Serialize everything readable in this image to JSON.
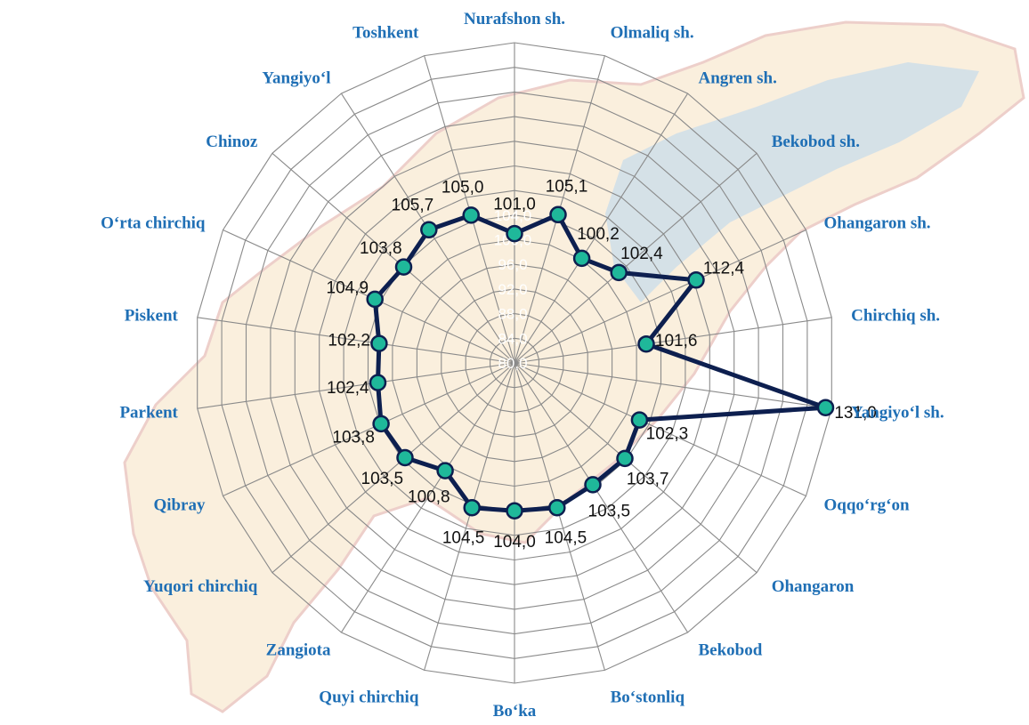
{
  "chart_data": {
    "type": "radar",
    "categories": [
      "Nurafshon sh.",
      "Olmaliq sh.",
      "Angren sh.",
      "Bekobod sh.",
      "Ohangaron sh.",
      "Chirchiq sh.",
      "Yangiyo‘l sh.",
      "Oqqo‘rg‘on",
      "Ohangaron",
      "Bekobod",
      "Bo‘stonliq",
      "Bo‘ka",
      "Quyi chirchiq",
      "Zangiota",
      "Yuqori chirchiq",
      "Qibray",
      "Parkent",
      "Piskent",
      "O‘rta chirchiq",
      "Chinoz",
      "Yangiyo‘l",
      "Toshkent"
    ],
    "values": [
      101.0,
      105.1,
      100.2,
      102.4,
      112.4,
      101.6,
      131.0,
      102.3,
      103.7,
      103.5,
      104.5,
      104.0,
      104.5,
      100.8,
      103.5,
      103.8,
      102.4,
      102.2,
      104.9,
      103.8,
      105.7,
      105.0
    ],
    "value_labels": [
      "101,0",
      "105,1",
      "100,2",
      "102,4",
      "112,4",
      "101,6",
      "131,0",
      "102,3",
      "103,7",
      "103,5",
      "104,5",
      "104,0",
      "104,5",
      "100,8",
      "103,5",
      "103,8",
      "102,4",
      "102,2",
      "104,9",
      "103,8",
      "105,7",
      "105,0"
    ],
    "radial_ticks": [
      "80,0",
      "84,0",
      "88,0",
      "92,0",
      "96,0",
      "100,0",
      "104,0"
    ],
    "rlim": [
      80,
      132
    ],
    "grid": true,
    "colors": {
      "line": "#0d1f4f",
      "marker_fill": "#1fb89a",
      "marker_edge": "#0d1f4f",
      "category_text": "#1f6fb5",
      "value_text": "#111111",
      "grid": "#8a8a8a",
      "map_land": "#f6e2c2",
      "map_water": "#bcd7ee"
    }
  }
}
